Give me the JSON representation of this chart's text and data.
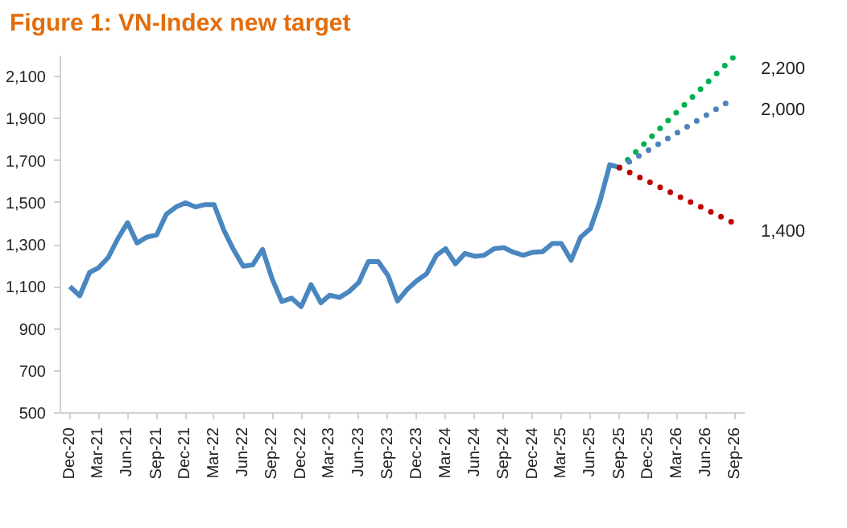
{
  "chart_data": {
    "type": "line",
    "title": "Figure 1: VN-Index new target",
    "x": [
      "2020-12",
      "2021-01",
      "2021-02",
      "2021-03",
      "2021-04",
      "2021-05",
      "2021-06",
      "2021-07",
      "2021-08",
      "2021-09",
      "2021-10",
      "2021-11",
      "2021-12",
      "2022-01",
      "2022-02",
      "2022-03",
      "2022-04",
      "2022-05",
      "2022-06",
      "2022-07",
      "2022-08",
      "2022-09",
      "2022-10",
      "2022-11",
      "2022-12",
      "2023-01",
      "2023-02",
      "2023-03",
      "2023-04",
      "2023-05",
      "2023-06",
      "2023-07",
      "2023-08",
      "2023-09",
      "2023-10",
      "2023-11",
      "2023-12",
      "2024-01",
      "2024-02",
      "2024-03",
      "2024-04",
      "2024-05",
      "2024-06",
      "2024-07",
      "2024-08",
      "2024-09",
      "2024-10",
      "2024-11",
      "2024-12",
      "2025-01",
      "2025-02",
      "2025-03",
      "2025-04",
      "2025-05",
      "2025-06",
      "2025-07",
      "2025-08",
      "2025-09"
    ],
    "series": [
      {
        "color": "#4a86c0",
        "line_style": "solid",
        "values": [
          1101,
          1057,
          1168,
          1190,
          1239,
          1328,
          1405,
          1308,
          1336,
          1347,
          1444,
          1480,
          1499,
          1480,
          1491,
          1491,
          1369,
          1278,
          1198,
          1204,
          1278,
          1135,
          1030,
          1046,
          1005,
          1110,
          1024,
          1060,
          1049,
          1077,
          1121,
          1220,
          1220,
          1154,
          1032,
          1088,
          1129,
          1162,
          1250,
          1281,
          1209,
          1259,
          1245,
          1250,
          1281,
          1286,
          1264,
          1250,
          1264,
          1267,
          1306,
          1306,
          1226,
          1336,
          1377,
          1507,
          1681,
          1667
        ]
      },
      {
        "color": "#00b050",
        "line_style": "dotted",
        "x": [
          "2025-09",
          "2026-09"
        ],
        "values": [
          1667,
          2200
        ]
      },
      {
        "color": "#4f81bd",
        "line_style": "dotted",
        "x": [
          "2025-09",
          "2026-09"
        ],
        "values": [
          1667,
          2000
        ]
      },
      {
        "color": "#c00000",
        "line_style": "dotted",
        "x": [
          "2025-09",
          "2026-09"
        ],
        "values": [
          1667,
          1400
        ]
      }
    ],
    "annotations": [
      {
        "text": "2,200",
        "x": "2026-09",
        "y": 2200
      },
      {
        "text": "2,000",
        "x": "2026-09",
        "y": 2000
      },
      {
        "text": "1,400",
        "x": "2026-09",
        "y": 1400
      }
    ],
    "xlim": [
      "2020-11",
      "2026-10"
    ],
    "xticks": [
      {
        "value": "2020-12",
        "label": "Dec-20"
      },
      {
        "value": "2021-03",
        "label": "Mar-21"
      },
      {
        "value": "2021-06",
        "label": "Jun-21"
      },
      {
        "value": "2021-09",
        "label": "Sep-21"
      },
      {
        "value": "2021-12",
        "label": "Dec-21"
      },
      {
        "value": "2022-03",
        "label": "Mar-22"
      },
      {
        "value": "2022-06",
        "label": "Jun-22"
      },
      {
        "value": "2022-09",
        "label": "Sep-22"
      },
      {
        "value": "2022-12",
        "label": "Dec-22"
      },
      {
        "value": "2023-03",
        "label": "Mar-23"
      },
      {
        "value": "2023-06",
        "label": "Jun-23"
      },
      {
        "value": "2023-09",
        "label": "Sep-23"
      },
      {
        "value": "2023-12",
        "label": "Dec-23"
      },
      {
        "value": "2024-03",
        "label": "Mar-24"
      },
      {
        "value": "2024-06",
        "label": "Jun-24"
      },
      {
        "value": "2024-09",
        "label": "Sep-24"
      },
      {
        "value": "2024-12",
        "label": "Dec-24"
      },
      {
        "value": "2025-03",
        "label": "Mar-25"
      },
      {
        "value": "2025-06",
        "label": "Jun-25"
      },
      {
        "value": "2025-09",
        "label": "Sep-25"
      },
      {
        "value": "2025-12",
        "label": "Dec-25"
      },
      {
        "value": "2026-03",
        "label": "Mar-26"
      },
      {
        "value": "2026-06",
        "label": "Jun-26"
      },
      {
        "value": "2026-09",
        "label": "Sep-26"
      }
    ],
    "ylim": [
      500,
      2200
    ],
    "yticks": [
      {
        "value": 500,
        "label": "500"
      },
      {
        "value": 700,
        "label": "700"
      },
      {
        "value": 900,
        "label": "900"
      },
      {
        "value": 1100,
        "label": "1,100"
      },
      {
        "value": 1300,
        "label": "1,300"
      },
      {
        "value": 1500,
        "label": "1,500"
      },
      {
        "value": 1700,
        "label": "1,700"
      },
      {
        "value": 1900,
        "label": "1,900"
      },
      {
        "value": 2100,
        "label": "2,100"
      }
    ],
    "grid": false
  }
}
